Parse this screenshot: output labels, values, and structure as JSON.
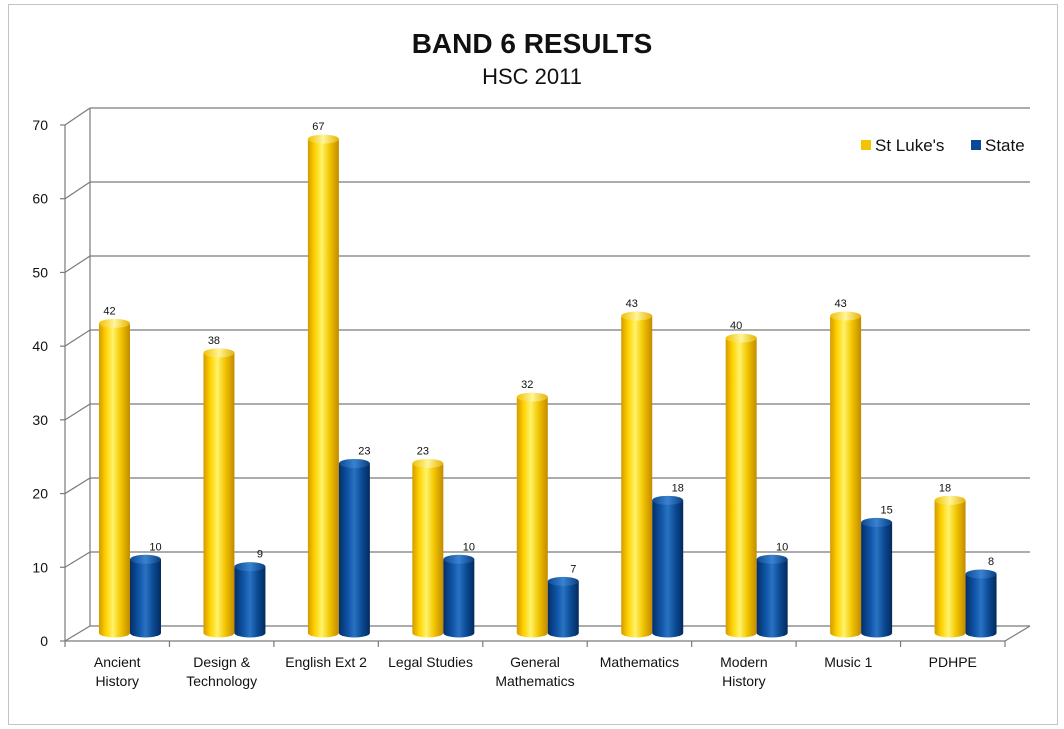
{
  "chart_data": {
    "type": "bar",
    "title": "BAND 6 RESULTS",
    "subtitle": "HSC 2011",
    "categories": [
      [
        "Ancient",
        "History"
      ],
      [
        "Design &",
        "Technology"
      ],
      [
        "English Ext 2"
      ],
      [
        "Legal Studies"
      ],
      [
        "General",
        "Mathematics"
      ],
      [
        "Mathematics"
      ],
      [
        "Modern",
        "History"
      ],
      [
        "Music 1"
      ],
      [
        "PDHPE"
      ]
    ],
    "series": [
      {
        "name": "St Luke's",
        "color": "#f2c500",
        "values": [
          42,
          38,
          67,
          23,
          32,
          43,
          40,
          43,
          18
        ]
      },
      {
        "name": "State",
        "color": "#0a4a94",
        "values": [
          10,
          9,
          23,
          10,
          7,
          18,
          10,
          15,
          8
        ]
      }
    ],
    "ylim": [
      0,
      70
    ],
    "yticks": [
      0,
      10,
      20,
      30,
      40,
      50,
      60,
      70
    ],
    "grid": true,
    "legend_position": "top-right",
    "xlabel": "",
    "ylabel": ""
  }
}
